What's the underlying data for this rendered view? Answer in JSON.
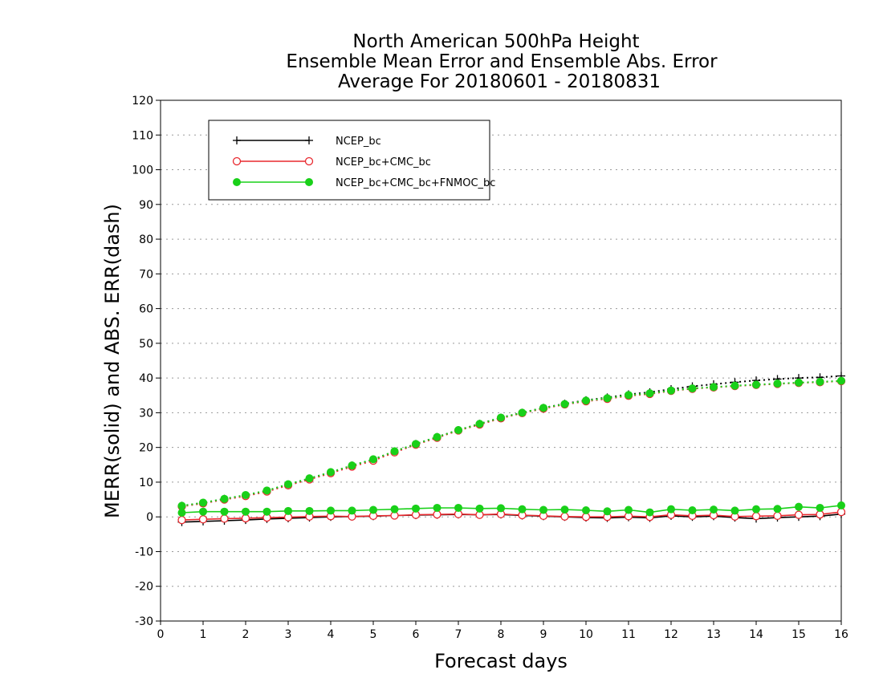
{
  "chart_data": {
    "type": "line",
    "title_lines": [
      "North American 500hPa Height",
      "Ensemble Mean Error and Ensemble Abs. Error",
      "Average For 20180601 - 20180831"
    ],
    "xlabel": "Forecast days",
    "ylabel": "MERR(solid) and ABS. ERR(dash)",
    "xlim": [
      0,
      16
    ],
    "ylim": [
      -30,
      120
    ],
    "x_ticks": [
      0,
      1,
      2,
      3,
      4,
      5,
      6,
      7,
      8,
      9,
      10,
      11,
      12,
      13,
      14,
      15,
      16
    ],
    "y_ticks": [
      -30,
      -20,
      -10,
      0,
      10,
      20,
      30,
      40,
      50,
      60,
      70,
      80,
      90,
      100,
      110,
      120
    ],
    "grid": true,
    "legend_position": "top-left",
    "x": [
      0.5,
      1,
      1.5,
      2,
      2.5,
      3,
      3.5,
      4,
      4.5,
      5,
      5.5,
      6,
      6.5,
      7,
      7.5,
      8,
      8.5,
      9,
      9.5,
      10,
      10.5,
      11,
      11.5,
      12,
      12.5,
      13,
      13.5,
      14,
      14.5,
      15,
      15.5,
      16
    ],
    "series": [
      {
        "name": "NCEP_bc",
        "color": "#000000",
        "marker": "plus",
        "merr": [
          -1.5,
          -1.3,
          -1.1,
          -0.9,
          -0.6,
          -0.4,
          -0.2,
          0,
          0.1,
          0.2,
          0.4,
          0.5,
          0.6,
          0.7,
          0.6,
          0.7,
          0.4,
          0.2,
          0,
          -0.2,
          -0.3,
          -0.1,
          -0.3,
          0.3,
          0,
          0.2,
          -0.2,
          -0.5,
          -0.2,
          0,
          0.2,
          0.8
        ],
        "abs_err": [
          3.2,
          4.0,
          5.2,
          6.2,
          7.5,
          9.3,
          11.0,
          12.8,
          14.8,
          16.5,
          18.8,
          21.0,
          23.0,
          25.0,
          26.8,
          28.6,
          30.0,
          31.4,
          32.6,
          33.6,
          34.4,
          35.3,
          35.9,
          36.8,
          37.6,
          38.2,
          38.8,
          39.3,
          39.7,
          40.0,
          40.2,
          40.6
        ]
      },
      {
        "name": "NCEP_bc+CMC_bc",
        "color": "#e8282e",
        "marker": "open-circle",
        "merr": [
          -0.9,
          -0.7,
          -0.5,
          -0.4,
          -0.2,
          -0.1,
          0.1,
          0.2,
          0.1,
          0.3,
          0.4,
          0.6,
          0.7,
          0.8,
          0.6,
          0.8,
          0.5,
          0.3,
          0.1,
          0,
          0,
          0.2,
          0,
          0.6,
          0.3,
          0.5,
          0.1,
          0.2,
          0.3,
          0.6,
          0.7,
          1.4
        ],
        "abs_err": [
          3.0,
          3.9,
          5.0,
          6.0,
          7.3,
          9.1,
          10.8,
          12.6,
          14.5,
          16.2,
          18.6,
          20.8,
          22.8,
          24.9,
          26.6,
          28.4,
          29.9,
          31.2,
          32.4,
          33.3,
          34.0,
          34.9,
          35.4,
          36.3,
          36.9,
          37.3,
          37.7,
          38.0,
          38.3,
          38.6,
          38.8,
          39.1
        ]
      },
      {
        "name": "NCEP_bc+CMC_bc+FNMOC_bc",
        "color": "#19d019",
        "marker": "filled-circle",
        "merr": [
          1.2,
          1.5,
          1.5,
          1.5,
          1.5,
          1.7,
          1.7,
          1.8,
          1.8,
          2.0,
          2.2,
          2.4,
          2.6,
          2.6,
          2.4,
          2.5,
          2.2,
          2.0,
          2.1,
          1.9,
          1.6,
          2.0,
          1.3,
          2.2,
          1.9,
          2.1,
          1.8,
          2.2,
          2.3,
          2.9,
          2.6,
          3.3
        ],
        "abs_err": [
          3.2,
          4.1,
          5.2,
          6.3,
          7.6,
          9.4,
          11.1,
          12.9,
          14.8,
          16.6,
          18.9,
          21.0,
          23.0,
          25.0,
          26.8,
          28.6,
          30.0,
          31.4,
          32.5,
          33.5,
          34.2,
          35.1,
          35.6,
          36.4,
          37.0,
          37.4,
          37.8,
          38.1,
          38.4,
          38.7,
          38.9,
          39.2
        ]
      }
    ]
  }
}
